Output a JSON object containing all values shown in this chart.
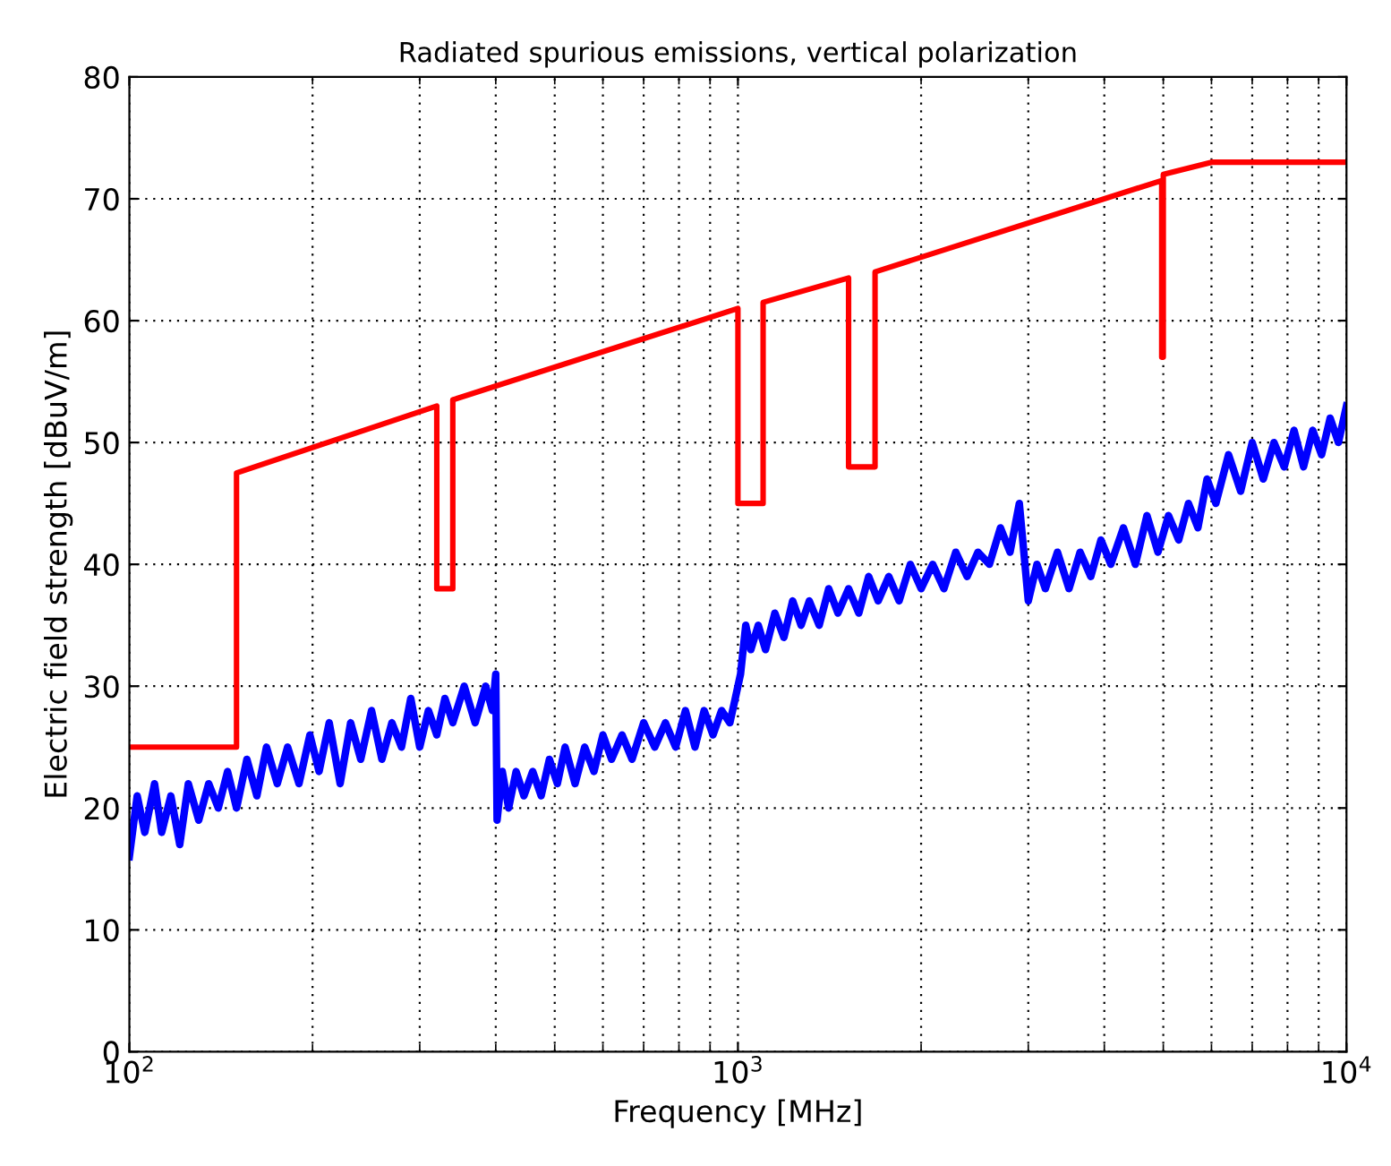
{
  "chart_data": {
    "type": "line",
    "title": "Radiated spurious emissions, vertical polarization",
    "xlabel": "Frequency [MHz]",
    "ylabel": "Electric field strength [dBuV/m]",
    "log": "x",
    "xlim": [
      100,
      10000
    ],
    "xticks": [
      {
        "value": 100,
        "label": "10$^{2}$"
      },
      {
        "value": 1000,
        "label": "10$^{3}$"
      },
      {
        "value": 10000,
        "label": "10$^{4}$"
      }
    ],
    "ylim": [
      0,
      80
    ],
    "yticks": [
      0,
      10,
      20,
      30,
      40,
      50,
      60,
      70,
      80
    ],
    "grid": true,
    "line_style": "solid",
    "marker": "none",
    "series": [
      {
        "color": "#0000ff",
        "x": [
          100,
          103,
          106,
          110,
          113,
          117,
          121,
          125,
          130,
          135,
          140,
          145,
          150,
          156,
          162,
          168,
          175,
          182,
          190,
          198,
          205,
          213,
          222,
          231,
          240,
          250,
          260,
          270,
          280,
          290,
          300,
          310,
          320,
          330,
          340,
          355,
          370,
          385,
          395,
          400,
          402,
          410,
          420,
          432,
          445,
          460,
          475,
          490,
          505,
          520,
          540,
          560,
          580,
          600,
          620,
          645,
          670,
          700,
          730,
          760,
          790,
          820,
          850,
          880,
          910,
          940,
          970,
          990,
          1010,
          1030,
          1050,
          1080,
          1110,
          1150,
          1190,
          1230,
          1270,
          1310,
          1360,
          1410,
          1460,
          1520,
          1580,
          1640,
          1700,
          1770,
          1840,
          1920,
          2000,
          2090,
          2180,
          2280,
          2380,
          2480,
          2590,
          2700,
          2800,
          2900,
          2950,
          3000,
          3100,
          3200,
          3350,
          3500,
          3650,
          3800,
          3950,
          4100,
          4300,
          4500,
          4700,
          4900,
          5100,
          5300,
          5500,
          5700,
          5900,
          6100,
          6400,
          6700,
          7000,
          7300,
          7600,
          7900,
          8200,
          8500,
          8800,
          9100,
          9400,
          9700,
          10000
        ],
        "values": [
          16,
          21,
          18,
          22,
          18,
          21,
          17,
          22,
          19,
          22,
          20,
          23,
          20,
          24,
          21,
          25,
          22,
          25,
          22,
          26,
          23,
          27,
          22,
          27,
          24,
          28,
          24,
          27,
          25,
          29,
          25,
          28,
          26,
          29,
          27,
          30,
          27,
          30,
          28,
          31,
          19,
          23,
          20,
          23,
          21,
          23,
          21,
          24,
          22,
          25,
          22,
          25,
          23,
          26,
          24,
          26,
          24,
          27,
          25,
          27,
          25,
          28,
          25,
          28,
          26,
          28,
          27,
          29,
          31,
          35,
          33,
          35,
          33,
          36,
          34,
          37,
          35,
          37,
          35,
          38,
          36,
          38,
          36,
          39,
          37,
          39,
          37,
          40,
          38,
          40,
          38,
          41,
          39,
          41,
          40,
          43,
          41,
          45,
          41,
          37,
          40,
          38,
          41,
          38,
          41,
          39,
          42,
          40,
          43,
          40,
          44,
          41,
          44,
          42,
          45,
          43,
          47,
          45,
          49,
          46,
          50,
          47,
          50,
          48,
          51,
          48,
          51,
          49,
          52,
          50,
          53
        ]
      },
      {
        "color": "#ff0000",
        "x": [
          100,
          150,
          150,
          320,
          320,
          340,
          340,
          1000,
          1000,
          1100,
          1100,
          1520,
          1520,
          1680,
          1680,
          4970,
          4970,
          5000,
          5000,
          6000,
          10000
        ],
        "values": [
          25,
          25,
          47.5,
          53,
          38,
          38,
          53.5,
          61,
          45,
          45,
          61.5,
          63.5,
          48,
          48,
          64,
          71.5,
          57,
          57,
          72,
          73,
          73
        ]
      }
    ]
  }
}
